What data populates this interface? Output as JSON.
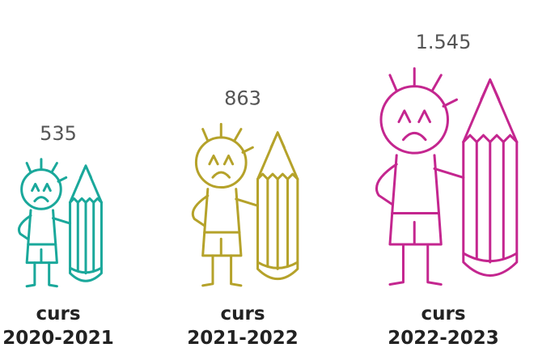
{
  "chart_data": {
    "type": "pictogram",
    "categories": [
      [
        "curs",
        "2020-2021"
      ],
      [
        "curs",
        "2021-2022"
      ],
      [
        "curs",
        "2022-2023"
      ]
    ],
    "values": [
      535,
      863,
      1545
    ],
    "value_labels": [
      "535",
      "863",
      "1.545"
    ],
    "colors": [
      "#1aa89b",
      "#b5a22a",
      "#c4268f"
    ]
  }
}
